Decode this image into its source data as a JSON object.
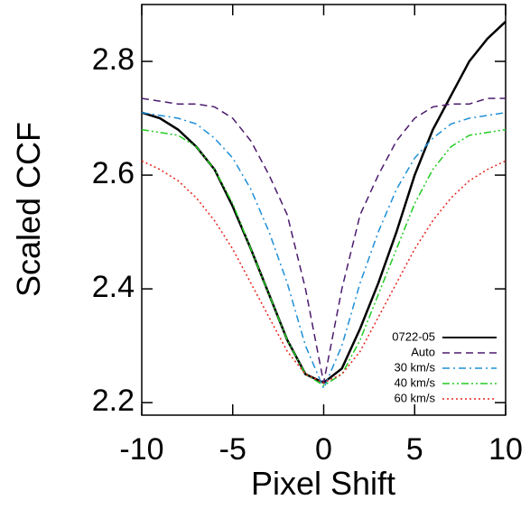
{
  "chart_data": {
    "type": "line",
    "x_label": "Pixel Shift",
    "y_label": "Scaled CCF",
    "xlim": [
      -10,
      10
    ],
    "ylim": [
      2.178,
      2.9
    ],
    "xticks": [
      -10,
      -5,
      0,
      5,
      10
    ],
    "yticks": [
      2.2,
      2.4,
      2.6,
      2.8
    ],
    "legend": "lower right",
    "x": [
      -10,
      -9,
      -8,
      -7,
      -6,
      -5,
      -4,
      -3,
      -2,
      -1,
      0,
      1,
      2,
      3,
      4,
      5,
      6,
      7,
      8,
      9,
      10
    ],
    "series": [
      {
        "name": "0722-05",
        "color": "#000000",
        "dash": "solid",
        "values": [
          2.71,
          2.7,
          2.68,
          2.65,
          2.61,
          2.545,
          2.47,
          2.39,
          2.31,
          2.25,
          2.235,
          2.26,
          2.33,
          2.41,
          2.5,
          2.6,
          2.68,
          2.74,
          2.8,
          2.84,
          2.87
        ]
      },
      {
        "name": "Auto",
        "color": "#4b1a6e",
        "dash": "dashed",
        "values": [
          2.735,
          2.73,
          2.725,
          2.725,
          2.72,
          2.7,
          2.66,
          2.6,
          2.53,
          2.4,
          2.235,
          2.4,
          2.53,
          2.6,
          2.66,
          2.7,
          2.72,
          2.725,
          2.725,
          2.735,
          2.735
        ]
      },
      {
        "name": "30 km/s",
        "color": "#1e8fd6",
        "dash": "dashdot",
        "values": [
          2.71,
          2.705,
          2.7,
          2.69,
          2.665,
          2.63,
          2.575,
          2.5,
          2.41,
          2.3,
          2.225,
          2.3,
          2.41,
          2.5,
          2.575,
          2.63,
          2.665,
          2.69,
          2.7,
          2.705,
          2.71
        ]
      },
      {
        "name": "40 km/s",
        "color": "#22cc22",
        "dash": "dashdotdot",
        "values": [
          2.68,
          2.675,
          2.67,
          2.65,
          2.61,
          2.55,
          2.47,
          2.39,
          2.31,
          2.25,
          2.23,
          2.25,
          2.31,
          2.39,
          2.47,
          2.55,
          2.61,
          2.65,
          2.67,
          2.675,
          2.68
        ]
      },
      {
        "name": "60 km/s",
        "color": "#e8231e",
        "dash": "dotted",
        "values": [
          2.625,
          2.61,
          2.59,
          2.56,
          2.52,
          2.47,
          2.41,
          2.35,
          2.29,
          2.25,
          2.235,
          2.25,
          2.29,
          2.35,
          2.41,
          2.47,
          2.52,
          2.56,
          2.59,
          2.61,
          2.625
        ]
      }
    ]
  }
}
